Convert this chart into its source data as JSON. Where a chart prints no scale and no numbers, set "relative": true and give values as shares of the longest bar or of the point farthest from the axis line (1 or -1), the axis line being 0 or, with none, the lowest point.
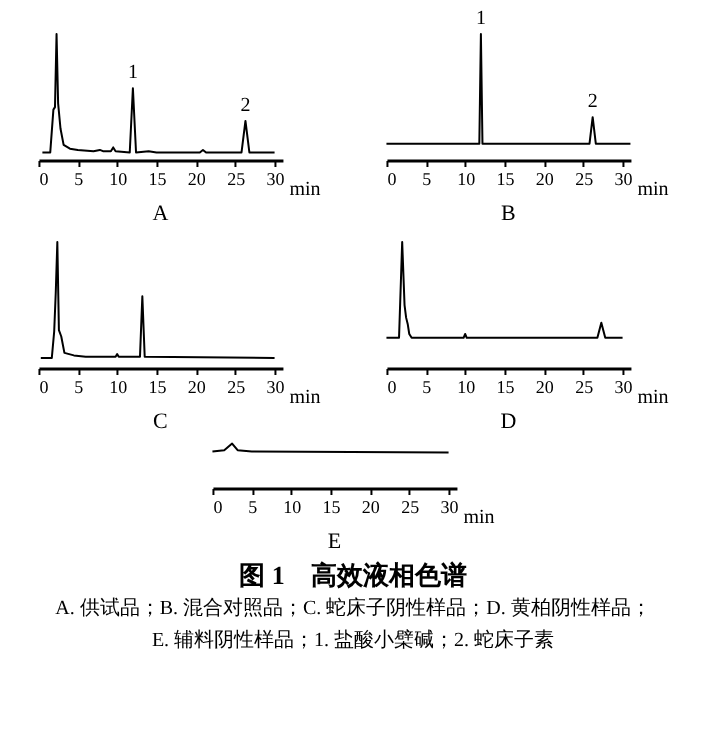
{
  "chart_data": [
    {
      "type": "line",
      "title": "A",
      "xlabel": "min",
      "relative": true,
      "xlim": [
        0,
        31
      ],
      "xticks": [
        0,
        5,
        10,
        15,
        20,
        25,
        30
      ],
      "grid": false,
      "series": [
        {
          "color": "#000000",
          "x": [
            0.5,
            1.5,
            1.9,
            2.1,
            2.3,
            2.5,
            2.8,
            3.2,
            4,
            5,
            7,
            7.8,
            8.2,
            9.2,
            9.5,
            9.8,
            11.6,
            12,
            12.4,
            14,
            15,
            20.5,
            20.9,
            21.3,
            25.8,
            26.3,
            26.8,
            30
          ],
          "values": [
            0.06,
            0.06,
            0.4,
            0.42,
            1.0,
            0.45,
            0.25,
            0.12,
            0.09,
            0.08,
            0.07,
            0.08,
            0.07,
            0.07,
            0.1,
            0.07,
            0.06,
            0.57,
            0.06,
            0.07,
            0.06,
            0.06,
            0.08,
            0.06,
            0.06,
            0.31,
            0.06,
            0.06
          ]
        }
      ],
      "annotations": [
        {
          "text": "1",
          "x": 12,
          "y": 0.57
        },
        {
          "text": "2",
          "x": 26.3,
          "y": 0.31
        }
      ]
    },
    {
      "type": "line",
      "title": "B",
      "xlabel": "min",
      "relative": true,
      "xlim": [
        0,
        31
      ],
      "xticks": [
        0,
        5,
        10,
        15,
        20,
        25,
        30
      ],
      "grid": false,
      "series": [
        {
          "color": "#000000",
          "x": [
            0,
            11.8,
            12,
            12.2,
            25.8,
            26.2,
            26.6,
            31
          ],
          "values": [
            0.13,
            0.13,
            1.0,
            0.13,
            0.13,
            0.34,
            0.13,
            0.13
          ]
        }
      ],
      "annotations": [
        {
          "text": "1",
          "x": 12,
          "y": 1.0
        },
        {
          "text": "2",
          "x": 26.2,
          "y": 0.34
        }
      ]
    },
    {
      "type": "line",
      "title": "C",
      "xlabel": "min",
      "relative": true,
      "xlim": [
        0,
        31
      ],
      "xticks": [
        0,
        5,
        10,
        15,
        20,
        25,
        30
      ],
      "grid": false,
      "series": [
        {
          "color": "#000000",
          "x": [
            0.3,
            1.7,
            2,
            2.2,
            2.4,
            2.6,
            2.9,
            3.3,
            4.5,
            6,
            9.8,
            10,
            10.2,
            12.9,
            13.2,
            13.5,
            30
          ],
          "values": [
            0.08,
            0.08,
            0.29,
            0.6,
            1.0,
            0.3,
            0.25,
            0.12,
            0.1,
            0.09,
            0.09,
            0.11,
            0.09,
            0.09,
            0.57,
            0.09,
            0.08
          ]
        }
      ]
    },
    {
      "type": "line",
      "title": "D",
      "xlabel": "min",
      "relative": true,
      "xlim": [
        0,
        31
      ],
      "xticks": [
        0,
        5,
        10,
        15,
        20,
        25,
        30
      ],
      "grid": false,
      "series": [
        {
          "color": "#000000",
          "x": [
            0,
            1.6,
            2.0,
            2.3,
            2.5,
            2.7,
            2.9,
            3.2,
            9.8,
            10,
            10.2,
            26.8,
            27.3,
            27.8,
            30
          ],
          "values": [
            0.24,
            0.24,
            1.0,
            0.5,
            0.4,
            0.35,
            0.27,
            0.24,
            0.24,
            0.27,
            0.24,
            0.24,
            0.36,
            0.24,
            0.24
          ]
        }
      ]
    },
    {
      "type": "line",
      "title": "E",
      "xlabel": "min",
      "relative": true,
      "xlim": [
        0,
        31
      ],
      "xticks": [
        0,
        5,
        10,
        15,
        20,
        25,
        30
      ],
      "grid": false,
      "series": [
        {
          "color": "#000000",
          "x": [
            0,
            1.5,
            2.5,
            3.2,
            5,
            30
          ],
          "values": [
            0.82,
            0.85,
            1.0,
            0.85,
            0.82,
            0.8
          ]
        }
      ],
      "annotations": [
        "图 1　高效液相色谱",
        "A. 供试品；B. 混合对照品；C. 蛇床子阴性样品；D. 黄柏阴性样品；",
        "E. 辅料阴性样品；1. 盐酸小檗碱；2. 蛇床子素"
      ]
    }
  ]
}
